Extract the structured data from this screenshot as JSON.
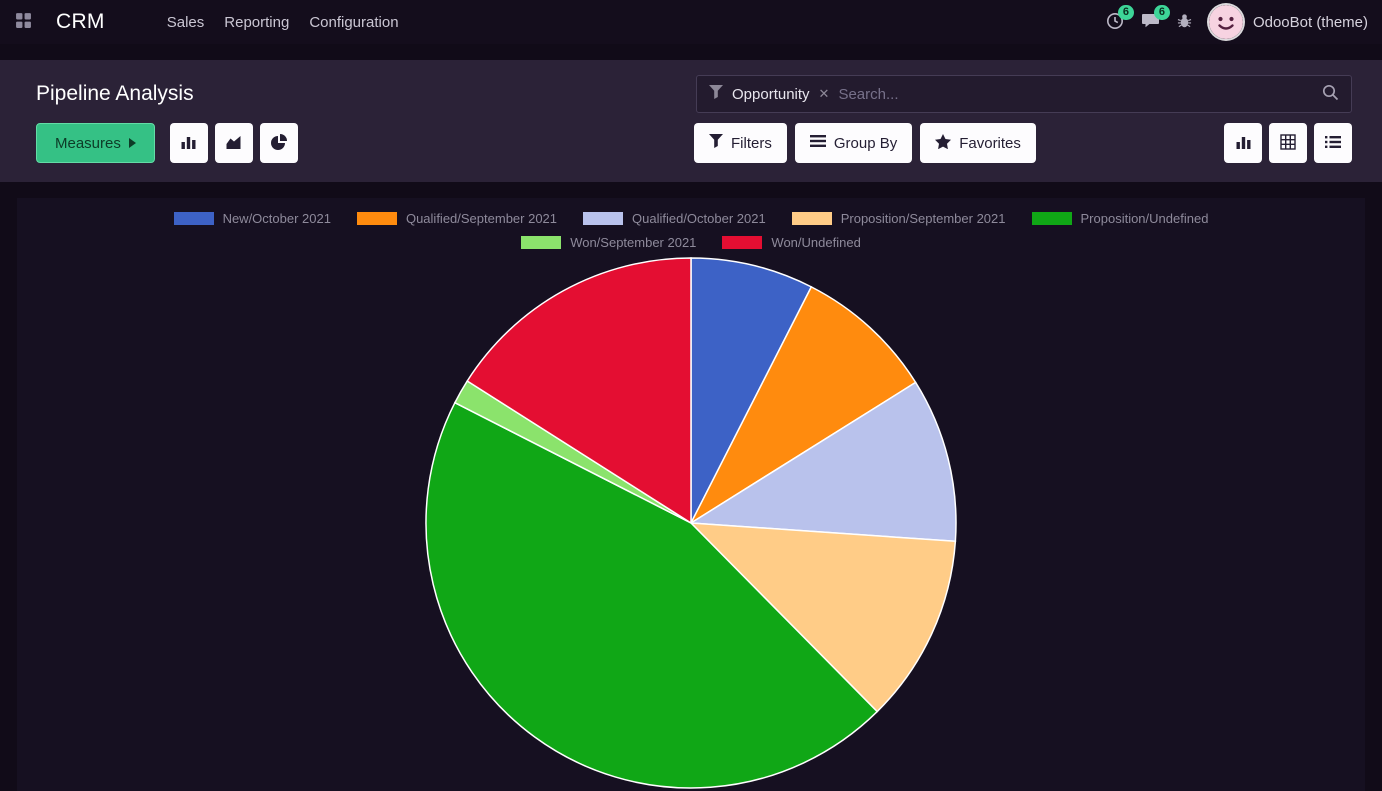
{
  "navbar": {
    "app_name": "CRM",
    "menu_items": [
      "Sales",
      "Reporting",
      "Configuration"
    ],
    "activities_badge": "6",
    "messages_badge": "6",
    "user_name": "OdooBot (theme)",
    "icons": [
      "apps-grid-icon",
      "clock-icon",
      "chat-bubble-icon",
      "bug-icon",
      "avatar"
    ]
  },
  "control_panel": {
    "title": "Pipeline Analysis",
    "search": {
      "facet_label": "Opportunity",
      "remove_facet": "✕",
      "placeholder": "Search..."
    },
    "buttons": {
      "measures": "Measures",
      "filters": "Filters",
      "group_by": "Group By",
      "favorites": "Favorites"
    },
    "chart_type_icons": [
      "bar-chart-icon",
      "area-chart-icon",
      "pie-chart-icon"
    ],
    "view_switcher_icons": [
      "bar-chart-view-icon",
      "pivot-view-icon",
      "list-view-icon"
    ]
  },
  "chart_data": {
    "type": "pie",
    "title": "",
    "legend_position": "top",
    "labels": [
      "New/October 2021",
      "Qualified/September 2021",
      "Qualified/October 2021",
      "Proposition/September 2021",
      "Proposition/Undefined",
      "Won/September 2021",
      "Won/Undefined"
    ],
    "values_percent": [
      7.5,
      8.6,
      10.0,
      11.5,
      44.9,
      1.5,
      16.0
    ],
    "colors": [
      "#3d62c6",
      "#ff8b0e",
      "#b9c2ec",
      "#ffcc87",
      "#10a716",
      "#8be36c",
      "#e40e32"
    ],
    "border_color": "#ffffff"
  },
  "theme": {
    "navbar_bg": "#140d1c",
    "panel_bg": "#2b2237",
    "page_bg": "#110b18",
    "card_bg": "#161021",
    "accent_green": "#35c185",
    "badge_green": "#3dd598",
    "legend_text": "#8e8a9b"
  }
}
